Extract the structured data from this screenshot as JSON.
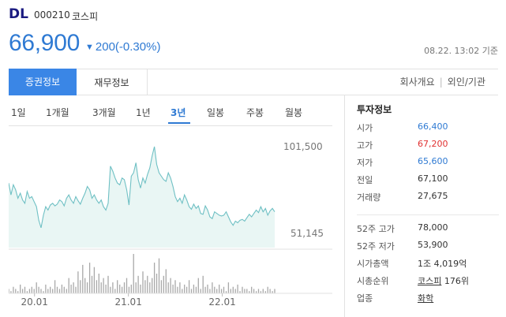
{
  "stock": {
    "name": "DL",
    "code": "000210",
    "market": "코스피",
    "price": "66,900",
    "change_arrow": "▼",
    "change": "200(-0.30%)",
    "timestamp": "08.22. 13:02 기준"
  },
  "tabs": {
    "active": "증권정보",
    "finance": "재무정보",
    "company": "회사개요",
    "foreign": "외인/기관"
  },
  "periods": [
    "1일",
    "1개월",
    "3개월",
    "1년",
    "3년",
    "일봉",
    "주봉",
    "월봉"
  ],
  "active_period": "3년",
  "chart_data": {
    "type": "area",
    "y_high_label": "101,500",
    "y_low_label": "51,145",
    "ylim": [
      51145,
      101500
    ],
    "x_tick_labels": [
      "20.01",
      "21.01",
      "22.01"
    ],
    "x_tick_positions_months": [
      3.3,
      15.3,
      27.3
    ],
    "price_series": [
      80000,
      73000,
      79000,
      76000,
      71000,
      74000,
      70000,
      68000,
      75000,
      71000,
      72000,
      69000,
      66000,
      58000,
      53500,
      61000,
      66000,
      64000,
      67000,
      68000,
      66500,
      67500,
      70000,
      69000,
      66500,
      71000,
      73000,
      70000,
      68000,
      72000,
      69500,
      67500,
      71000,
      74000,
      78000,
      76000,
      71000,
      73000,
      70000,
      68000,
      70000,
      66000,
      64000,
      68000,
      90000,
      87000,
      83000,
      80000,
      79000,
      83000,
      82000,
      76000,
      67000,
      84000,
      86000,
      92000,
      82000,
      77000,
      83000,
      80000,
      85000,
      89000,
      96000,
      101500,
      91000,
      86000,
      84000,
      82000,
      81000,
      86000,
      83000,
      78000,
      72000,
      69000,
      71000,
      68000,
      73000,
      70000,
      66000,
      64500,
      67500,
      65000,
      66500,
      62000,
      61500,
      66500,
      64000,
      60000,
      59000,
      63000,
      62000,
      61000,
      60500,
      61000,
      63000,
      60000,
      57000,
      55000,
      57500,
      56500,
      58000,
      58500,
      57500,
      59500,
      61500,
      60000,
      62000,
      64000,
      62500,
      66000,
      63000,
      65000,
      61000,
      63500,
      65000,
      63000
    ],
    "volume_series": [
      2,
      1,
      3,
      2,
      1,
      4,
      2,
      3,
      1,
      2,
      3,
      2,
      5,
      3,
      2,
      1,
      4,
      2,
      3,
      2,
      6,
      3,
      2,
      4,
      3,
      2,
      7,
      4,
      5,
      3,
      10,
      6,
      13,
      7,
      5,
      14,
      8,
      12,
      6,
      9,
      5,
      7,
      4,
      8,
      3,
      5,
      2,
      6,
      4,
      3,
      5,
      7,
      3,
      4,
      18,
      5,
      8,
      4,
      10,
      6,
      8,
      5,
      7,
      14,
      9,
      16,
      6,
      8,
      11,
      5,
      7,
      4,
      6,
      3,
      5,
      2,
      4,
      3,
      6,
      2,
      4,
      3,
      7,
      2,
      8,
      3,
      4,
      2,
      5,
      3,
      2,
      4,
      2,
      3,
      1,
      5,
      2,
      3,
      2,
      4,
      1,
      3,
      2,
      2,
      1,
      3,
      2,
      1,
      2,
      1,
      2,
      1,
      3,
      2,
      1,
      2
    ]
  },
  "info": {
    "title": "투자정보",
    "rows": [
      {
        "label": "시가",
        "value": "66,400",
        "color": "blue"
      },
      {
        "label": "고가",
        "value": "67,200",
        "color": "red"
      },
      {
        "label": "저가",
        "value": "65,600",
        "color": "blue"
      },
      {
        "label": "전일",
        "value": "67,100",
        "color": ""
      },
      {
        "label": "거래량",
        "value": "27,675",
        "color": ""
      }
    ],
    "rows2": [
      {
        "label": "52주 고가",
        "value": "78,000"
      },
      {
        "label": "52주 저가",
        "value": "53,900"
      },
      {
        "label": "시가총액",
        "value": "1조 4,019억"
      }
    ],
    "rank_label": "시총순위",
    "rank_link": "코스피",
    "rank_value": "176위",
    "industry_label": "업종",
    "industry_value": "화학"
  },
  "colors": {
    "accent": "#3a86e6",
    "down": "#2f7ad3",
    "up": "#e03131",
    "line": "#6fc0c4",
    "fill": "#e9f6f4",
    "volume": "#a8a8a8"
  }
}
